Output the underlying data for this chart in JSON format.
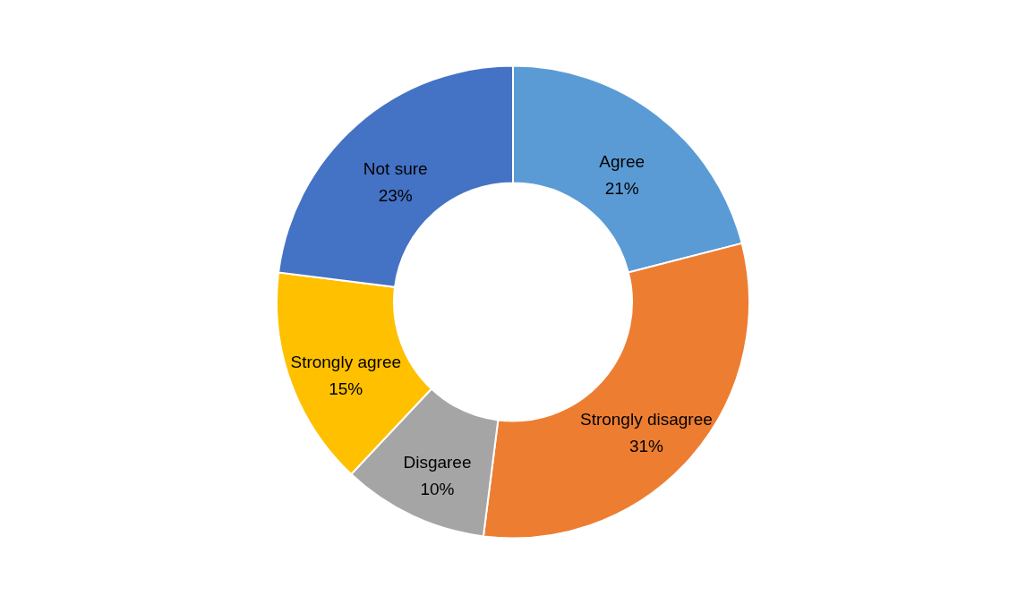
{
  "chart_data": {
    "type": "donut",
    "categories": [
      "Agree",
      "Strongly  disagree",
      "Disgaree",
      "Strongly agree",
      "Not sure"
    ],
    "values": [
      21,
      31,
      10,
      15,
      23
    ],
    "value_labels": [
      "21%",
      "31%",
      "10%",
      "15%",
      "23%"
    ],
    "colors": [
      "#5b9bd5",
      "#ed7d31",
      "#a5a5a5",
      "#ffc000",
      "#4472c4"
    ]
  }
}
